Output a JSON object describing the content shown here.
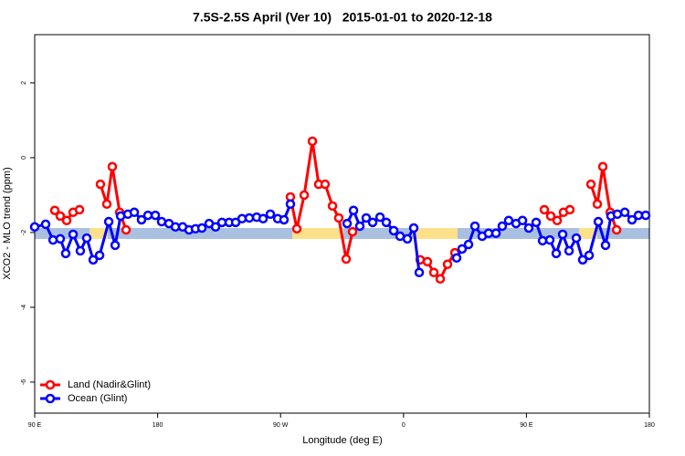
{
  "chart_data": {
    "type": "line",
    "title": "7.5S-2.5S April (Ver 10)   2015-01-01 to 2020-12-18",
    "x_label": "Longitude (deg E)",
    "y_label": "XCO2 - MLO trend (ppm)",
    "xlim": [
      90,
      540
    ],
    "ylim": [
      -6.83,
      3.29
    ],
    "xticks": [
      {
        "value": 90,
        "label": "90 E"
      },
      180,
      {
        "value": 270,
        "label": "90 W"
      },
      {
        "value": 360,
        "label": "0"
      },
      {
        "value": 450,
        "label": "90 E"
      },
      180
    ],
    "yticks": [
      2,
      0,
      -2,
      -4,
      -6
    ],
    "legend": "bottom-left",
    "series": [
      {
        "name": "Land (Nadir&Glint)",
        "color": "#ff0000",
        "x": [
          104.7,
          108.7,
          113.4,
          118.1,
          122.8,
          130,
          138.1,
          142.8,
          146.8,
          152.2,
          156.9,
          200,
          277.2,
          281.9,
          287.3,
          293.3,
          297.9,
          302.6,
          308.0,
          312.6,
          318.0,
          322.7,
          350,
          372.2,
          377.5,
          382.2,
          386.9,
          392.2,
          397.6,
          430,
          463.1,
          467.8,
          472.5,
          477.1,
          481.8,
          490,
          497.2,
          501.9,
          505.9,
          511.3,
          516.0
        ],
        "values": [
          -1.41,
          -1.56,
          -1.68,
          -1.46,
          -1.39,
          null,
          -0.71,
          -1.24,
          -0.24,
          -1.46,
          -1.93,
          null,
          -1.05,
          -1.9,
          -1.0,
          0.44,
          -0.71,
          -0.71,
          -1.29,
          -1.61,
          -2.71,
          -1.98,
          null,
          -2.73,
          -2.78,
          -3.07,
          -3.24,
          -2.85,
          -2.54,
          null,
          -1.39,
          -1.56,
          -1.68,
          -1.46,
          -1.39,
          null,
          -0.71,
          -1.24,
          -0.24,
          -1.46,
          -1.93
        ]
      },
      {
        "name": "Ocean (Glint)",
        "color": "#0000ff",
        "x": [
          90,
          98.0,
          103.4,
          108.7,
          112.7,
          118.1,
          123.4,
          128.1,
          132.8,
          137.5,
          144.2,
          148.9,
          152.9,
          158.2,
          162.9,
          168.2,
          172.9,
          178.3,
          182.9,
          188.3,
          193.0,
          198.3,
          203.0,
          207.7,
          212.4,
          217.7,
          222.4,
          227.1,
          232.4,
          237.1,
          241.8,
          247.1,
          252.5,
          257.2,
          262.5,
          267.9,
          272.5,
          277.2,
          300,
          318.7,
          323.4,
          328.0,
          332.7,
          337.4,
          342.8,
          347.4,
          352.8,
          357.5,
          362.8,
          367.5,
          371.5,
          385,
          398.9,
          402.9,
          407.6,
          412.3,
          417.6,
          422.3,
          427.7,
          432.3,
          437.0,
          442.4,
          447.1,
          451.7,
          457.1,
          461.8,
          467.1,
          471.8,
          476.5,
          481.2,
          486.5,
          491.2,
          495.9,
          502.6,
          507.9,
          511.9,
          516.6,
          522.0,
          527.3,
          532.0,
          537.3
        ],
        "values": [
          -1.85,
          -1.78,
          -2.2,
          -2.17,
          -2.56,
          -2.05,
          -2.49,
          -2.15,
          -2.73,
          -2.61,
          -1.71,
          -2.34,
          -1.56,
          -1.51,
          -1.46,
          -1.66,
          -1.54,
          -1.54,
          -1.71,
          -1.76,
          -1.85,
          -1.85,
          -1.93,
          -1.9,
          -1.88,
          -1.76,
          -1.85,
          -1.73,
          -1.73,
          -1.73,
          -1.63,
          -1.61,
          -1.59,
          -1.63,
          -1.51,
          -1.63,
          -1.66,
          -1.24,
          null,
          -1.76,
          -1.41,
          -1.83,
          -1.61,
          -1.73,
          -1.59,
          -1.73,
          -1.95,
          -2.1,
          -2.17,
          -1.88,
          -3.07,
          null,
          -2.68,
          -2.44,
          -2.32,
          -1.83,
          -2.1,
          -2.02,
          -2.02,
          -1.83,
          -1.68,
          -1.76,
          -1.68,
          -1.88,
          -1.73,
          -2.22,
          -2.2,
          -2.56,
          -2.05,
          -2.49,
          -2.15,
          -2.73,
          -2.61,
          -1.71,
          -2.34,
          -1.56,
          -1.51,
          -1.46,
          -1.66,
          -1.54,
          -1.54
        ]
      }
    ]
  }
}
